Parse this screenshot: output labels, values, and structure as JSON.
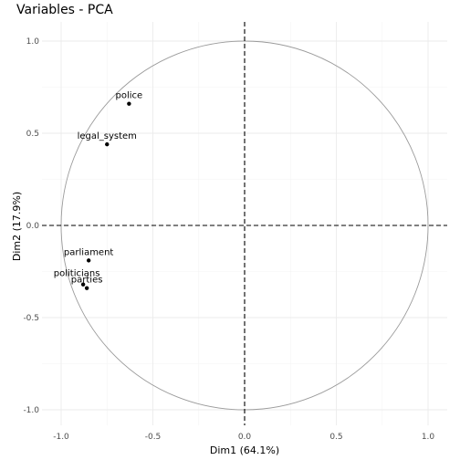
{
  "chart_data": {
    "type": "scatter",
    "subtype": "pca-correlation-circle",
    "title": "Variables - PCA",
    "xlabel": "Dim1 (64.1%)",
    "ylabel": "Dim2 (17.9%)",
    "xlim": [
      -1.0,
      1.0
    ],
    "ylim": [
      -1.0,
      1.0
    ],
    "xticks": [
      -1.0,
      -0.5,
      0.0,
      0.5,
      1.0
    ],
    "xtick_labels": [
      "-1.0",
      "-0.5",
      "0.0",
      "0.5",
      "1.0"
    ],
    "yticks": [
      -1.0,
      -0.5,
      0.0,
      0.5,
      1.0
    ],
    "ytick_labels": [
      "-1.0",
      "-0.5",
      "0.0",
      "0.5",
      "1.0"
    ],
    "grid": true,
    "unit_circle": true,
    "reference_lines": {
      "x": 0,
      "y": 0,
      "style": "dashed"
    },
    "points": [
      {
        "label": "police",
        "x": -0.63,
        "y": 0.66
      },
      {
        "label": "legal_system",
        "x": -0.75,
        "y": 0.44
      },
      {
        "label": "parliament",
        "x": -0.85,
        "y": -0.19
      },
      {
        "label": "politicians",
        "x": -0.88,
        "y": -0.32
      },
      {
        "label": "parties",
        "x": -0.86,
        "y": -0.34
      }
    ]
  }
}
